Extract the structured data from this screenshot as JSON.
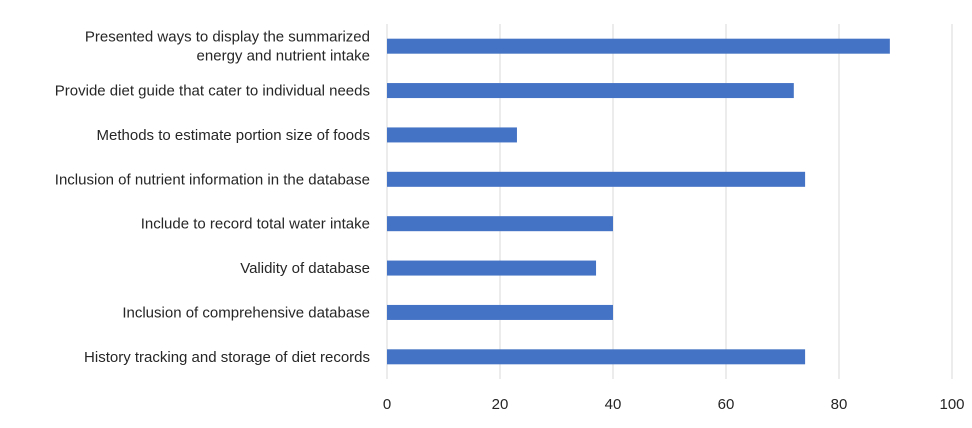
{
  "chart_data": {
    "type": "bar",
    "orientation": "horizontal",
    "categories": [
      [
        "Presented ways to display the summarized",
        "energy and nutrient intake"
      ],
      [
        "Provide diet guide that cater to individual needs"
      ],
      [
        "Methods to estimate portion size of foods"
      ],
      [
        "Inclusion of nutrient information in the database"
      ],
      [
        "Include to record total water intake"
      ],
      [
        "Validity of database"
      ],
      [
        "Inclusion of comprehensive database"
      ],
      [
        "History tracking and storage of diet records"
      ]
    ],
    "values": [
      89,
      72,
      23,
      74,
      40,
      37,
      40,
      74
    ],
    "xlim": [
      0,
      100
    ],
    "xticks": [
      0,
      20,
      40,
      60,
      80,
      100
    ],
    "title": "",
    "xlabel": "",
    "ylabel": "",
    "grid": "vertical",
    "legend": "none",
    "bar_color": "#4472c4"
  }
}
